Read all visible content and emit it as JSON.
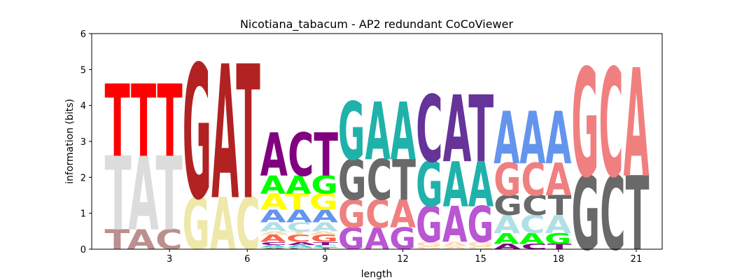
{
  "chart_data": {
    "type": "sequence-logo",
    "title": "Nicotiana_tabacum - AP2 redundant CoCoViewer",
    "xlabel": "length",
    "ylabel": "information (bits)",
    "xlim": [
      0,
      22
    ],
    "ylim": [
      0,
      6
    ],
    "xticks": [
      3,
      6,
      9,
      12,
      15,
      18,
      21
    ],
    "yticks": [
      0,
      1,
      2,
      3,
      4,
      5,
      6
    ],
    "columns": [
      {
        "position": 1,
        "stack": [
          {
            "text": "TAC",
            "color": "#bc8f8f",
            "bottom": 0.0,
            "top": 0.55
          },
          {
            "text": "TAT",
            "color": "#dcdcdc",
            "bottom": 0.55,
            "top": 2.6
          },
          {
            "text": "TTT",
            "color": "#ff0000",
            "bottom": 2.6,
            "top": 4.6
          }
        ]
      },
      {
        "position": 4,
        "stack": [
          {
            "text": "GAC",
            "color": "#eee8aa",
            "bottom": 0.0,
            "top": 1.45
          },
          {
            "text": "GAT",
            "color": "#b22222",
            "bottom": 1.45,
            "top": 5.15
          }
        ]
      },
      {
        "position": 7,
        "stack": [
          {
            "text": "ACT",
            "color": "#8a8a8a",
            "bottom": 0.0,
            "top": 0.05
          },
          {
            "text": "AAC",
            "color": "#48d1cc",
            "bottom": 0.05,
            "top": 0.12
          },
          {
            "text": "CAT",
            "color": "#8b008b",
            "bottom": 0.12,
            "top": 0.2
          },
          {
            "text": "ACG",
            "color": "#ff6347",
            "bottom": 0.2,
            "top": 0.4
          },
          {
            "text": "ATA",
            "color": "#f5deb3",
            "bottom": 0.4,
            "top": 0.5
          },
          {
            "text": "ACA",
            "color": "#b0e0e6",
            "bottom": 0.5,
            "top": 0.75
          },
          {
            "text": "AAA",
            "color": "#6495ed",
            "bottom": 0.75,
            "top": 1.1
          },
          {
            "text": "ATG",
            "color": "#ffff00",
            "bottom": 1.1,
            "top": 1.55
          },
          {
            "text": "AAG",
            "color": "#00ff00",
            "bottom": 1.55,
            "top": 2.05
          },
          {
            "text": "ACT",
            "color": "#800080",
            "bottom": 2.05,
            "top": 3.25
          }
        ]
      },
      {
        "position": 10,
        "stack": [
          {
            "text": "GAG",
            "color": "#ba55d3",
            "bottom": 0.0,
            "top": 0.6
          },
          {
            "text": "GCA",
            "color": "#f08080",
            "bottom": 0.6,
            "top": 1.38
          },
          {
            "text": "GCT",
            "color": "#696969",
            "bottom": 1.38,
            "top": 2.5
          },
          {
            "text": "GAA",
            "color": "#20b2aa",
            "bottom": 2.5,
            "top": 4.1
          }
        ]
      },
      {
        "position": 13,
        "stack": [
          {
            "text": "GAG",
            "color": "#f5deb3",
            "bottom": 0.0,
            "top": 0.08
          },
          {
            "text": "GAG",
            "color": "#ffdab9",
            "bottom": 0.08,
            "top": 0.2
          },
          {
            "text": "GAG",
            "color": "#ba55d3",
            "bottom": 0.2,
            "top": 1.2
          },
          {
            "text": "GAA",
            "color": "#20b2aa",
            "bottom": 1.2,
            "top": 2.45
          },
          {
            "text": "CAT",
            "color": "#663399",
            "bottom": 2.45,
            "top": 4.3
          }
        ]
      },
      {
        "position": 16,
        "stack": [
          {
            "text": "ACT",
            "color": "#800080",
            "bottom": 0.0,
            "top": 0.15
          },
          {
            "text": "AAG",
            "color": "#00ff00",
            "bottom": 0.15,
            "top": 0.45
          },
          {
            "text": "ACA",
            "color": "#b0e0e6",
            "bottom": 0.45,
            "top": 0.95
          },
          {
            "text": "GCT",
            "color": "#696969",
            "bottom": 0.95,
            "top": 1.5
          },
          {
            "text": "GCA",
            "color": "#f08080",
            "bottom": 1.5,
            "top": 2.4
          },
          {
            "text": "AAA",
            "color": "#6495ed",
            "bottom": 2.4,
            "top": 3.85
          }
        ]
      },
      {
        "position": 19,
        "stack": [
          {
            "text": "GCT",
            "color": "#696969",
            "bottom": 0.0,
            "top": 2.05
          },
          {
            "text": "GCA",
            "color": "#f08080",
            "bottom": 2.05,
            "top": 5.05
          }
        ]
      }
    ]
  }
}
